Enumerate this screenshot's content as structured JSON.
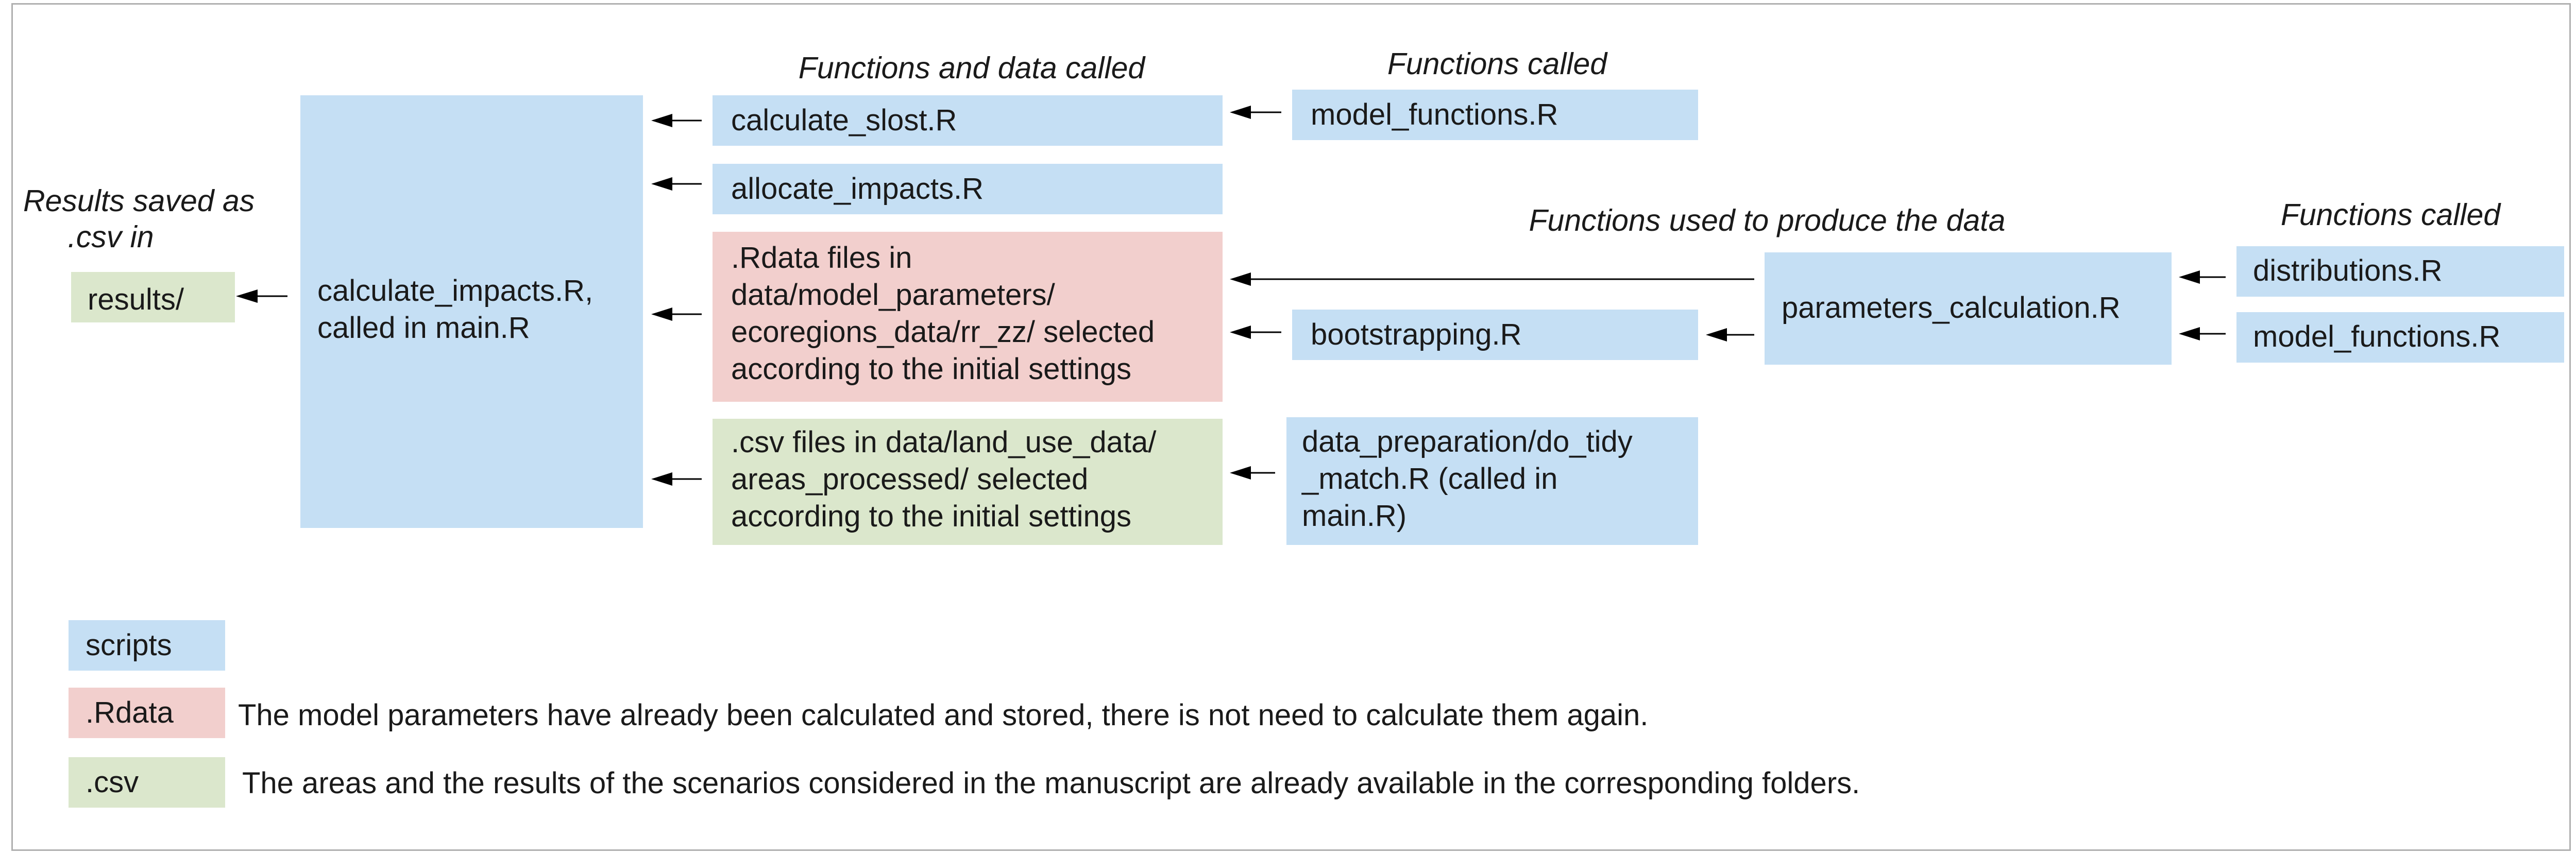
{
  "headings": {
    "results_saved": [
      "Results saved as",
      ".csv in"
    ],
    "functions_and_data": "Functions and data called",
    "functions_called_top": "Functions called",
    "functions_used": "Functions used to produce the data",
    "functions_called_right": "Functions called"
  },
  "boxes": {
    "results": "results/",
    "calculate_impacts": [
      "calculate_impacts.R,",
      "called in main.R"
    ],
    "calculate_slost": "calculate_slost.R",
    "allocate_impacts": "allocate_impacts.R",
    "rdata_files": [
      ".Rdata files in",
      "data/model_parameters/",
      "ecoregions_data/rr_zz/ selected",
      "according to the initial settings"
    ],
    "csv_files": [
      ".csv files in data/land_use_data/",
      "areas_processed/ selected",
      "according to the initial settings"
    ],
    "model_functions_top": "model_functions.R",
    "bootstrapping": "bootstrapping.R",
    "data_preparation": [
      "data_preparation/do_tidy",
      "_match.R (called in",
      "main.R)"
    ],
    "parameters_calculation": "parameters_calculation.R",
    "distributions": "distributions.R",
    "model_functions_right": "model_functions.R"
  },
  "legend": [
    {
      "key": "scripts",
      "color": "#c5dff4",
      "text": ""
    },
    {
      "key": ".Rdata",
      "color": "#f2cfcd",
      "text": "The model parameters have already been calculated and stored, there is not need to calculate them again."
    },
    {
      "key": ".csv",
      "color": "#dbe7cc",
      "text": "The areas and the results of the scenarios considered in the manuscript are already available in the corresponding folders."
    }
  ],
  "colors": {
    "script_box": "#c5dff4",
    "rdata_box": "#f2cfcd",
    "csv_box": "#dbe7cc",
    "arrow": "#000000",
    "frame": "#b0b0b0"
  }
}
